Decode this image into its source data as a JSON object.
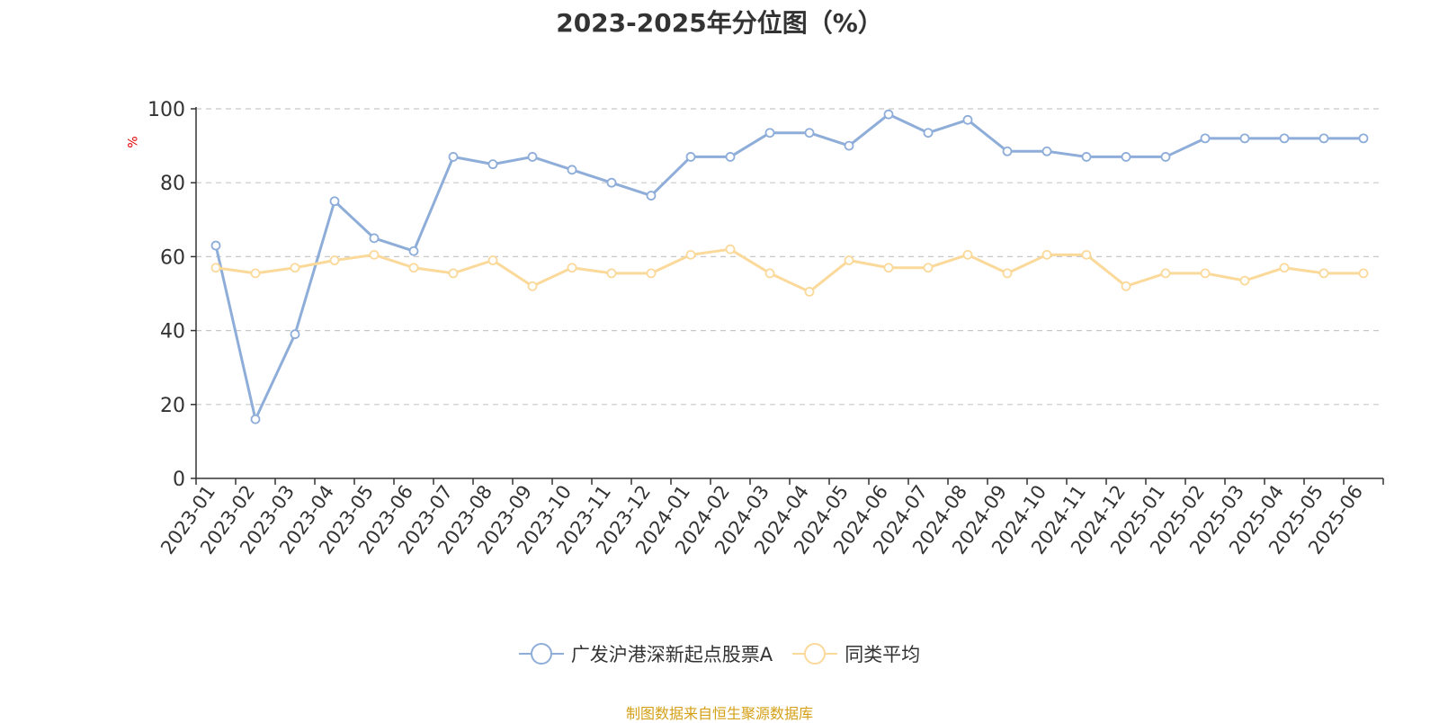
{
  "chart_data": {
    "type": "line",
    "title": "2023-2025年分位图（%）",
    "ylabel": "%",
    "ylim": [
      0,
      100
    ],
    "yticks": [
      0,
      20,
      40,
      60,
      80,
      100
    ],
    "grid": true,
    "legend_position": "bottom",
    "categories": [
      "2023-01",
      "2023-02",
      "2023-03",
      "2023-04",
      "2023-05",
      "2023-06",
      "2023-07",
      "2023-08",
      "2023-09",
      "2023-10",
      "2023-11",
      "2023-12",
      "2024-01",
      "2024-02",
      "2024-03",
      "2024-04",
      "2024-05",
      "2024-06",
      "2024-07",
      "2024-08",
      "2024-09",
      "2024-10",
      "2024-11",
      "2024-12",
      "2025-01",
      "2025-02",
      "2025-03",
      "2025-04",
      "2025-05",
      "2025-06"
    ],
    "series": [
      {
        "name": "广发沪港深新起点股票A",
        "color": "#8eadd9",
        "values": [
          63,
          16,
          39,
          75,
          65,
          61.5,
          87,
          85,
          87,
          83.5,
          80,
          76.5,
          87,
          87,
          93.5,
          93.5,
          90,
          98.5,
          93.5,
          97,
          88.5,
          88.5,
          87,
          87,
          87,
          92,
          92,
          92,
          92,
          92
        ]
      },
      {
        "name": "同类平均",
        "color": "#fad99a",
        "values": [
          57,
          55.5,
          57,
          59,
          60.5,
          57,
          55.5,
          59,
          52,
          57,
          55.5,
          55.5,
          60.5,
          62,
          55.5,
          50.5,
          59,
          57,
          57,
          60.5,
          55.5,
          60.5,
          60.5,
          52,
          55.5,
          55.5,
          53.5,
          57,
          55.5,
          55.5
        ]
      }
    ]
  },
  "source_text": "制图数据来自恒生聚源数据库"
}
